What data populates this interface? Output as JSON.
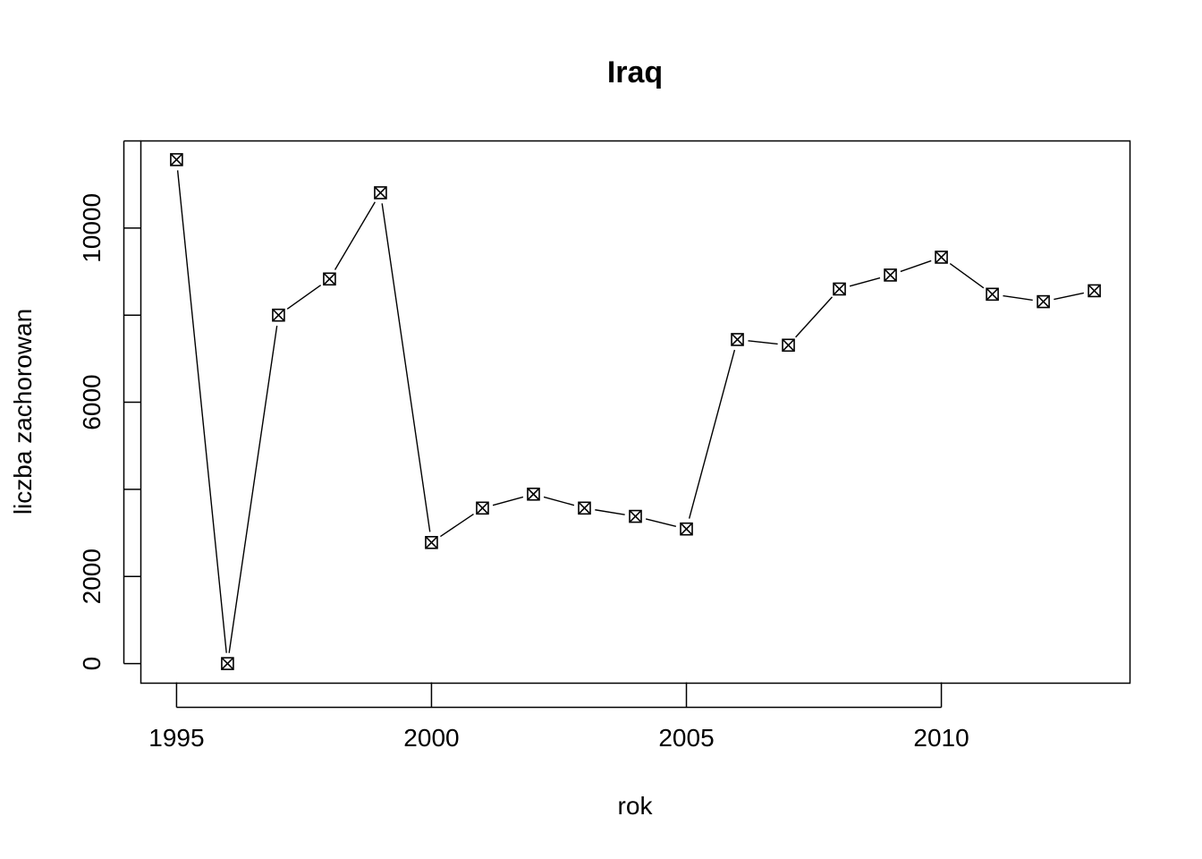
{
  "chart_data": {
    "type": "line",
    "title": "Iraq",
    "xlabel": "rok",
    "ylabel": "liczba zachorowan",
    "marker": "boxed-x",
    "x": [
      1995,
      1996,
      1997,
      1998,
      1999,
      2000,
      2001,
      2002,
      2003,
      2004,
      2005,
      2006,
      2007,
      2008,
      2009,
      2010,
      2011,
      2012,
      2013
    ],
    "series": [
      {
        "values": [
          11570,
          0,
          8000,
          8830,
          10810,
          2780,
          3570,
          3890,
          3570,
          3380,
          3090,
          7440,
          7310,
          8600,
          8920,
          9330,
          8480,
          8310,
          8560
        ]
      }
    ],
    "xlim": [
      1994.3,
      2013.7
    ],
    "ylim": [
      -450,
      12000
    ],
    "xticks": [
      1995,
      2000,
      2005,
      2010
    ],
    "xtick_labels": [
      "1995",
      "2000",
      "2005",
      "2010"
    ],
    "yticks": [
      0,
      2000,
      4000,
      6000,
      8000,
      10000,
      12000
    ],
    "ytick_labels": [
      "0",
      "2000",
      "",
      "6000",
      "",
      "10000",
      ""
    ],
    "grid": false,
    "legend": "none"
  }
}
